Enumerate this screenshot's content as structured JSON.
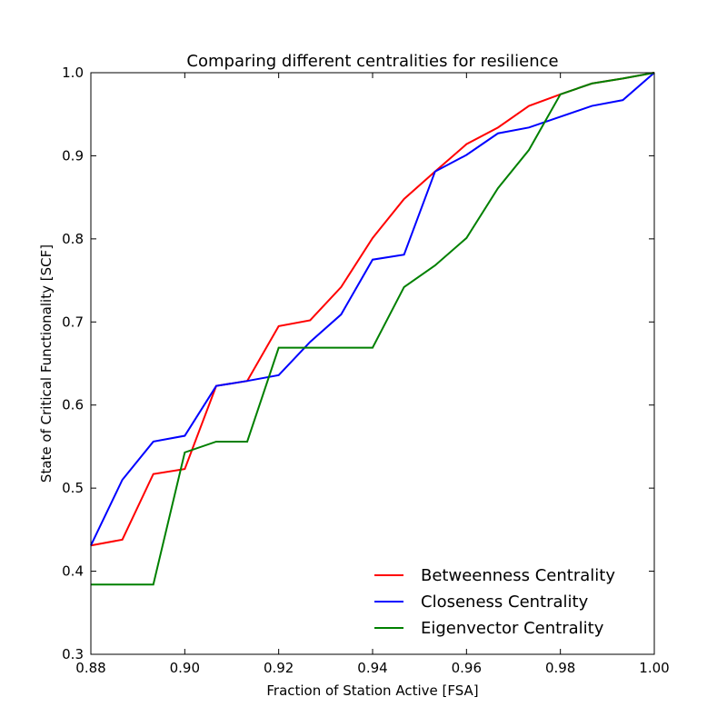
{
  "chart_data": {
    "type": "line",
    "title": "Comparing different centralities for resilience",
    "xlabel": "Fraction of Station Active [FSA]",
    "ylabel": "State of Critical Functionality [SCF]",
    "xlim": [
      0.88,
      1.0
    ],
    "ylim": [
      0.3,
      1.0
    ],
    "x_ticks": [
      "0.88",
      "0.90",
      "0.92",
      "0.94",
      "0.96",
      "0.98",
      "1.00"
    ],
    "y_ticks": [
      "0.3",
      "0.4",
      "0.5",
      "0.6",
      "0.7",
      "0.8",
      "0.9",
      "1.0"
    ],
    "grid": false,
    "legend_position": "lower-right",
    "x": [
      0.88,
      0.8867,
      0.8933,
      0.9,
      0.9067,
      0.9133,
      0.92,
      0.9267,
      0.9333,
      0.94,
      0.9467,
      0.9533,
      0.96,
      0.9667,
      0.9733,
      0.98,
      0.9867,
      0.9933,
      1.0
    ],
    "series": [
      {
        "name": "Betweenness Centrality",
        "color": "#ff0000",
        "values": [
          0.431,
          0.438,
          0.517,
          0.523,
          0.623,
          0.629,
          0.695,
          0.702,
          0.742,
          0.801,
          0.848,
          0.881,
          0.914,
          0.934,
          0.96,
          0.974,
          0.987,
          0.993,
          1.0
        ]
      },
      {
        "name": "Closeness Centrality",
        "color": "#0000ff",
        "values": [
          0.431,
          0.51,
          0.556,
          0.563,
          0.623,
          0.629,
          0.636,
          0.676,
          0.709,
          0.775,
          0.781,
          0.881,
          0.901,
          0.927,
          0.934,
          0.947,
          0.96,
          0.967,
          1.0
        ]
      },
      {
        "name": "Eigenvector Centrality",
        "color": "#008000",
        "values": [
          0.384,
          0.384,
          0.384,
          0.543,
          0.556,
          0.556,
          0.669,
          0.669,
          0.669,
          0.669,
          0.742,
          0.768,
          0.801,
          0.861,
          0.907,
          0.974,
          0.987,
          0.993,
          1.0
        ]
      }
    ]
  }
}
